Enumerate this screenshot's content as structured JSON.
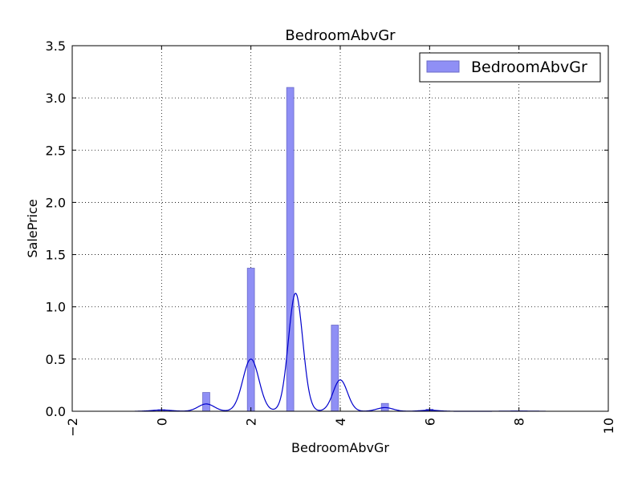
{
  "chart_data": {
    "type": "bar",
    "title": "BedroomAbvGr",
    "xlabel": "BedroomAbvGr",
    "ylabel": "SalePrice",
    "xlim": [
      -2,
      10
    ],
    "ylim": [
      0,
      3.5
    ],
    "xticks": [
      -2,
      0,
      2,
      4,
      6,
      8,
      10
    ],
    "yticks": [
      0.0,
      0.5,
      1.0,
      1.5,
      2.0,
      2.5,
      3.0,
      3.5
    ],
    "xtick_labels": [
      "−2",
      "0",
      "2",
      "4",
      "6",
      "8",
      "10"
    ],
    "ytick_labels": [
      "0.0",
      "0.5",
      "1.0",
      "1.5",
      "2.0",
      "2.5",
      "3.0",
      "3.5"
    ],
    "grid": true,
    "legend_position": "top-right",
    "histogram": {
      "name": "BedroomAbvGr",
      "color": "#8f8ff5",
      "edge_color": "#6b6bc8",
      "bin_width": 0.16,
      "bins": [
        {
          "x": 0.0,
          "height": 0.015
        },
        {
          "x": 1.0,
          "height": 0.18
        },
        {
          "x": 2.0,
          "height": 1.37
        },
        {
          "x": 2.88,
          "height": 3.1
        },
        {
          "x": 3.88,
          "height": 0.825
        },
        {
          "x": 5.0,
          "height": 0.075
        },
        {
          "x": 6.0,
          "height": 0.02
        },
        {
          "x": 8.0,
          "height": 0.002
        }
      ]
    },
    "kde": {
      "color": "#0000cc",
      "x_range": [
        -0.6,
        8.6
      ],
      "components": [
        {
          "mu": 0.0,
          "sigma": 0.22,
          "peak": 0.012
        },
        {
          "mu": 1.0,
          "sigma": 0.18,
          "peak": 0.07
        },
        {
          "mu": 2.0,
          "sigma": 0.18,
          "peak": 0.5
        },
        {
          "mu": 3.0,
          "sigma": 0.16,
          "peak": 1.13
        },
        {
          "mu": 4.0,
          "sigma": 0.16,
          "peak": 0.3
        },
        {
          "mu": 5.0,
          "sigma": 0.18,
          "peak": 0.035
        },
        {
          "mu": 6.0,
          "sigma": 0.2,
          "peak": 0.01
        },
        {
          "mu": 8.0,
          "sigma": 0.3,
          "peak": 0.002
        }
      ]
    }
  }
}
